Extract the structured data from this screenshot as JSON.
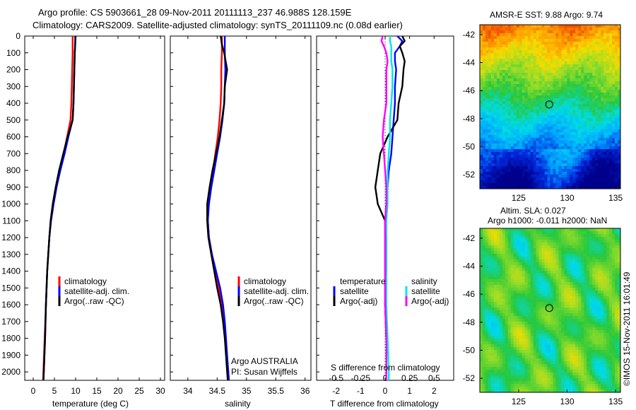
{
  "header": {
    "line1": "Argo profile: CS 5903661_28 09-Nov-2011 20111113_237 46.988S 128.159E",
    "line2": "Climatology: CARS2009. Satellite-adjusted climatology: synTS_20111109.nc (0.08d earlier)"
  },
  "side_label": "©IMOS 15-Nov-2011 16:01:49",
  "colors": {
    "climatology": "#ff0000",
    "satellite": "#0000ff",
    "argo": "#000000",
    "sal_satellite": "#00e5ee",
    "sal_argo": "#ff00ff"
  },
  "chart_data": [
    {
      "id": "temperature",
      "type": "line",
      "xlabel": "temperature (deg C)",
      "ylabel": "",
      "xlim": [
        -2,
        31
      ],
      "ylim": [
        2050,
        0
      ],
      "xticks": [
        "0",
        "5",
        "10",
        "15",
        "20",
        "25",
        "30"
      ],
      "xtick_values": [
        0,
        5,
        10,
        15,
        20,
        25,
        30
      ],
      "yticks": [
        "0",
        "100",
        "200",
        "300",
        "400",
        "500",
        "600",
        "700",
        "800",
        "900",
        "1000",
        "1100",
        "1200",
        "1300",
        "1400",
        "1500",
        "1600",
        "1700",
        "1800",
        "1900",
        "2000"
      ],
      "ytick_values": [
        0,
        100,
        200,
        300,
        400,
        500,
        600,
        700,
        800,
        900,
        1000,
        1100,
        1200,
        1300,
        1400,
        1500,
        1600,
        1700,
        1800,
        1900,
        2000
      ],
      "legend": [
        "climatology",
        "satellite-adj. clim.",
        "Argo(..raw -QC)"
      ],
      "depth": [
        0,
        50,
        100,
        200,
        300,
        400,
        500,
        600,
        700,
        800,
        900,
        1000,
        1100,
        1200,
        1400,
        1600,
        1800,
        2000,
        2050
      ],
      "series": [
        {
          "name": "climatology",
          "key": "climatology",
          "values": [
            9.3,
            9.3,
            9.3,
            9.2,
            9.1,
            9.0,
            8.8,
            8.0,
            7.2,
            6.3,
            5.5,
            4.8,
            4.2,
            3.8,
            3.3,
            3.0,
            2.7,
            2.4,
            2.35
          ]
        },
        {
          "name": "satellite-adj. clim.",
          "key": "satellite",
          "values": [
            9.9,
            9.9,
            9.8,
            9.7,
            9.6,
            9.5,
            9.3,
            8.3,
            7.4,
            6.4,
            5.5,
            4.8,
            4.2,
            3.8,
            3.3,
            3.0,
            2.8,
            2.5,
            2.4
          ]
        },
        {
          "name": "Argo(..raw -QC)",
          "key": "argo",
          "values": [
            10.0,
            9.9,
            9.8,
            9.7,
            9.6,
            9.5,
            9.3,
            8.1,
            7.1,
            6.1,
            5.3,
            4.6,
            4.1,
            3.8,
            3.3,
            3.0,
            2.8,
            2.5,
            2.4
          ]
        }
      ]
    },
    {
      "id": "salinity",
      "type": "line",
      "xlabel": "salinity",
      "ylabel": "",
      "xlim": [
        33.7,
        36.1
      ],
      "ylim": [
        2050,
        0
      ],
      "xticks": [
        "34",
        "34.5",
        "35",
        "35.5",
        "36"
      ],
      "xtick_values": [
        34,
        34.5,
        35,
        35.5,
        36
      ],
      "legend": [
        "climatology",
        "satellite-adj. clim.",
        "Argo(..raw -QC)"
      ],
      "annotation": [
        "Argo AUSTRALIA",
        "PI: Susan Wijffels"
      ],
      "depth": [
        0,
        50,
        100,
        200,
        300,
        400,
        500,
        600,
        700,
        800,
        900,
        1000,
        1100,
        1200,
        1300,
        1400,
        1500,
        1600,
        1700,
        1800,
        1900,
        2000,
        2050
      ],
      "series": [
        {
          "name": "climatology",
          "key": "climatology",
          "values": [
            34.58,
            34.58,
            34.58,
            34.57,
            34.57,
            34.56,
            34.54,
            34.51,
            34.47,
            34.43,
            34.38,
            34.35,
            34.34,
            34.36,
            34.41,
            34.47,
            34.53,
            34.58,
            34.61,
            34.64,
            34.66,
            34.69,
            34.7
          ]
        },
        {
          "name": "satellite-adj. clim.",
          "key": "satellite",
          "values": [
            34.63,
            34.63,
            34.63,
            34.64,
            34.63,
            34.62,
            34.59,
            34.55,
            34.5,
            34.45,
            34.4,
            34.36,
            34.34,
            34.36,
            34.41,
            34.48,
            34.55,
            34.6,
            34.63,
            34.65,
            34.67,
            34.69,
            34.7
          ]
        },
        {
          "name": "Argo(..raw -QC)",
          "key": "argo",
          "values": [
            34.56,
            34.58,
            34.62,
            34.67,
            34.63,
            34.62,
            34.58,
            34.54,
            34.48,
            34.42,
            34.37,
            34.33,
            34.33,
            34.35,
            34.4,
            34.45,
            34.5,
            34.56,
            34.6,
            34.63,
            34.65,
            34.67,
            34.68
          ]
        }
      ]
    },
    {
      "id": "differences",
      "type": "line",
      "xlabel": "T difference from climatology",
      "xlabel_top": "S difference from climatology",
      "xlim": [
        -2.8,
        2.8
      ],
      "ylim": [
        2050,
        0
      ],
      "xticks": [
        "-2",
        "-1",
        "0",
        "1",
        "2"
      ],
      "xtick_values": [
        -2,
        -1,
        0,
        1,
        2
      ],
      "xticks_top": [
        "-0.5",
        "-0.25",
        "0",
        "0.25",
        "0.5"
      ],
      "xtick_top_positions": [
        -2,
        -1,
        0,
        1,
        2
      ],
      "legend_temperature_title": "temperature",
      "legend_salinity_title": "salinity",
      "legend_temperature": [
        "satellite",
        "Argo(-adj)"
      ],
      "legend_salinity": [
        "satellite",
        "Argo(-adj)"
      ],
      "depth": [
        0,
        30,
        60,
        100,
        150,
        200,
        300,
        400,
        500,
        600,
        700,
        800,
        900,
        1000,
        1100,
        1200,
        1400,
        1600,
        1800,
        2000,
        2050
      ],
      "series": [
        {
          "name": "satellite",
          "group": "temperature",
          "key": "satellite",
          "values": [
            0.5,
            0.7,
            0.6,
            0.4,
            0.4,
            0.45,
            0.4,
            0.4,
            0.35,
            0.3,
            0.25,
            0.15,
            0.1,
            0.05,
            0.0,
            0.0,
            0.0,
            0.0,
            0.05,
            0.05,
            0.05
          ]
        },
        {
          "name": "Argo(-adj)",
          "group": "temperature",
          "key": "argo",
          "values": [
            0.7,
            0.8,
            0.6,
            0.7,
            0.8,
            0.75,
            0.7,
            0.55,
            0.5,
            0.1,
            -0.2,
            -0.3,
            -0.4,
            -0.3,
            0.0,
            0.05,
            0.05,
            0.0,
            0.05,
            0.05,
            0.05
          ]
        },
        {
          "name": "satellite",
          "group": "salinity",
          "key": "sal_satellite",
          "values": [
            0.2,
            0.2,
            0.25,
            0.25,
            0.25,
            0.3,
            0.3,
            0.25,
            0.2,
            0.2,
            0.15,
            0.1,
            0.1,
            0.1,
            0.05,
            0.05,
            0.05,
            0.05,
            0.1,
            0.15,
            0.15
          ]
        },
        {
          "name": "Argo(-adj)",
          "group": "salinity",
          "key": "sal_argo",
          "values": [
            -0.1,
            -0.15,
            -0.05,
            0.05,
            0.1,
            0.05,
            0.05,
            0.05,
            -0.05,
            -0.1,
            -0.05,
            0.0,
            0.05,
            0.05,
            0.0,
            0.0,
            0.0,
            0.0,
            0.05,
            0.05,
            0.05
          ]
        }
      ]
    },
    {
      "id": "sst_map",
      "type": "heatmap",
      "title": "AMSR-E SST: 9.88 Argo: 9.74",
      "xlim": [
        121,
        135.5
      ],
      "ylim": [
        -53,
        -41.3
      ],
      "xticks": [
        "125",
        "130",
        "135"
      ],
      "xtick_values": [
        125,
        130,
        135
      ],
      "yticks": [
        "-42",
        "-44",
        "-46",
        "-48",
        "-50",
        "-52"
      ],
      "ytick_values": [
        -42,
        -44,
        -46,
        -48,
        -50,
        -52
      ],
      "marker": [
        128.159,
        -46.988
      ]
    },
    {
      "id": "sla_map",
      "type": "heatmap",
      "title_lines": [
        "Altim. SLA: 0.027",
        "Argo h1000: -0.011 h2000: NaN"
      ],
      "xlim": [
        121,
        135.5
      ],
      "ylim": [
        -53,
        -41.3
      ],
      "xticks": [
        "125",
        "130",
        "135"
      ],
      "xtick_values": [
        125,
        130,
        135
      ],
      "yticks": [
        "-42",
        "-44",
        "-46",
        "-48",
        "-50",
        "-52"
      ],
      "ytick_values": [
        -42,
        -44,
        -46,
        -48,
        -50,
        -52
      ],
      "marker": [
        128.159,
        -46.988
      ]
    }
  ]
}
